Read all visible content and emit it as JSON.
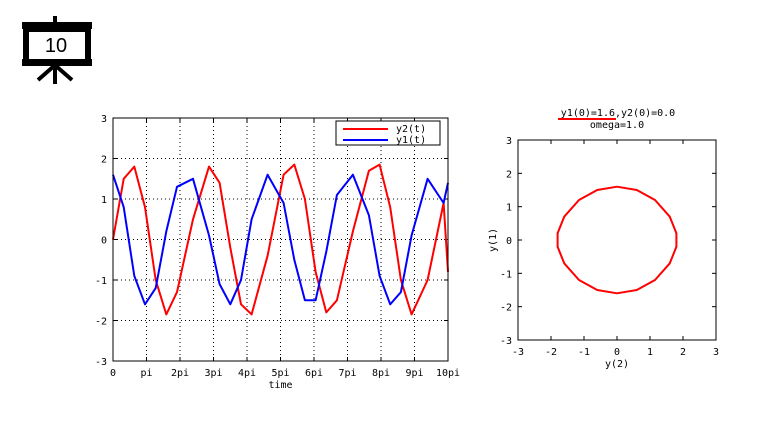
{
  "slide": {
    "number": "10",
    "icon": "presentation-board-icon"
  },
  "chart_data": [
    {
      "type": "line",
      "title": "",
      "xlabel": "time",
      "ylabel": "",
      "xlim": [
        0,
        31.4159
      ],
      "ylim": [
        -3,
        3
      ],
      "grid": true,
      "legend_position": "top-right",
      "x_tick_labels": [
        "0",
        "pi",
        "2pi",
        "3pi",
        "4pi",
        "5pi",
        "6pi",
        "7pi",
        "8pi",
        "9pi",
        "10pi"
      ],
      "y_tick_labels": [
        "-3",
        "-2",
        "-1",
        "0",
        "1",
        "2",
        "3"
      ],
      "series": [
        {
          "name": "y2(t)",
          "color": "#ff0000",
          "x": [
            0,
            1.0,
            2.0,
            3.0,
            4.0,
            5.0,
            6.0,
            7.5,
            9.0,
            10.0,
            11.0,
            12.0,
            13.0,
            14.5,
            16.0,
            17.0,
            18.0,
            19.0,
            20.0,
            21.0,
            22.5,
            24.0,
            25.0,
            26.0,
            27.0,
            28.0,
            29.5,
            31.0,
            31.4159
          ],
          "y": [
            0,
            1.5,
            1.8,
            0.8,
            -1.0,
            -1.85,
            -1.3,
            0.5,
            1.8,
            1.4,
            -0.2,
            -1.6,
            -1.85,
            -0.4,
            1.6,
            1.85,
            1.0,
            -0.8,
            -1.8,
            -1.5,
            0.2,
            1.7,
            1.85,
            0.8,
            -1.0,
            -1.85,
            -1.0,
            0.9,
            -0.8
          ]
        },
        {
          "name": "y1(t)",
          "color": "#0000ff",
          "x": [
            0,
            1.0,
            2.0,
            3.0,
            4.0,
            5.0,
            6.0,
            7.5,
            9.0,
            10.0,
            11.0,
            12.0,
            13.0,
            14.5,
            16.0,
            17.0,
            18.0,
            19.0,
            20.0,
            21.0,
            22.5,
            24.0,
            25.0,
            26.0,
            27.0,
            28.0,
            29.5,
            31.0,
            31.4159
          ],
          "y": [
            1.6,
            0.8,
            -0.9,
            -1.6,
            -1.2,
            0.2,
            1.3,
            1.5,
            0.1,
            -1.1,
            -1.6,
            -1.0,
            0.5,
            1.6,
            0.9,
            -0.5,
            -1.5,
            -1.5,
            -0.3,
            1.1,
            1.6,
            0.6,
            -0.9,
            -1.6,
            -1.3,
            0.1,
            1.5,
            0.9,
            1.4
          ]
        }
      ]
    },
    {
      "type": "line",
      "title": "y1(0)=1.6,y2(0)=0.0",
      "subtitle": "omega=1.0",
      "xlabel": "y(2)",
      "ylabel": "y(1)",
      "xlim": [
        -3,
        3
      ],
      "ylim": [
        -3,
        3
      ],
      "grid": false,
      "x_tick_labels": [
        "-3",
        "-2",
        "-1",
        "0",
        "1",
        "2",
        "3"
      ],
      "y_tick_labels": [
        "-3",
        "-2",
        "-1",
        "0",
        "1",
        "2",
        "3"
      ],
      "series": [
        {
          "color": "#ff0000",
          "x": [
            0,
            0.6,
            1.15,
            1.6,
            1.8,
            1.8,
            1.6,
            1.15,
            0.6,
            0,
            -0.6,
            -1.15,
            -1.6,
            -1.8,
            -1.8,
            -1.6,
            -1.15,
            -0.6,
            0
          ],
          "y": [
            1.6,
            1.5,
            1.2,
            0.7,
            0.2,
            -0.2,
            -0.7,
            -1.2,
            -1.5,
            -1.6,
            -1.5,
            -1.2,
            -0.7,
            -0.2,
            0.2,
            0.7,
            1.2,
            1.5,
            1.6
          ]
        }
      ]
    }
  ]
}
